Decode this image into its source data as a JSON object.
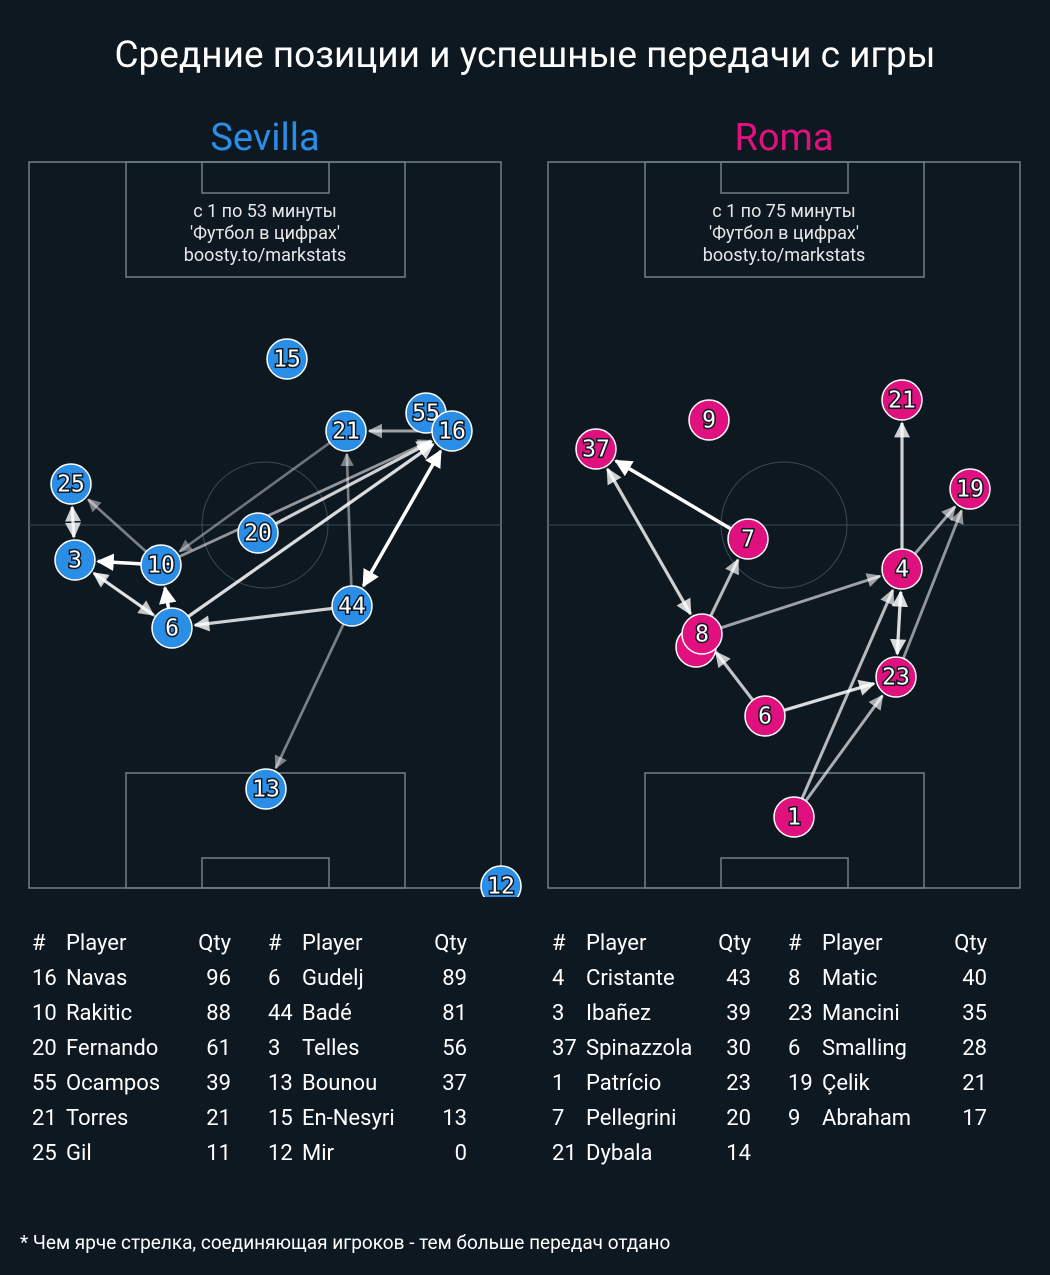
{
  "title": "Средние позиции и успешные передачи с игры",
  "note": "* Чем ярче стрелка, соединяющая игроков - тем больше передач отдано",
  "headers": [
    "#",
    "Player",
    "Qty"
  ],
  "teams": [
    {
      "name": "Sevilla",
      "color": "#2a8de6",
      "caption": [
        "с 1 по 53 минуты",
        "'Футбол в цифрах'",
        "boosty.to/markstats"
      ],
      "nodes": [
        15,
        21,
        55,
        16,
        25,
        20,
        3,
        10,
        6,
        44,
        13,
        12
      ],
      "tables": [
        [
          [
            16,
            "Navas",
            96
          ],
          [
            10,
            "Rakitic",
            88
          ],
          [
            20,
            "Fernando",
            61
          ],
          [
            55,
            "Ocampos",
            39
          ],
          [
            21,
            "Torres",
            21
          ],
          [
            25,
            "Gil",
            11
          ]
        ],
        [
          [
            6,
            "Gudelj",
            89
          ],
          [
            44,
            "Badé",
            81
          ],
          [
            3,
            "Telles",
            56
          ],
          [
            13,
            "Bounou",
            37
          ],
          [
            15,
            "En-Nesyri",
            13
          ],
          [
            12,
            "Mir",
            0
          ]
        ]
      ]
    },
    {
      "name": "Roma",
      "color": "#e0117f",
      "caption": [
        "с 1 по 75 минуты",
        "'Футбол в цифрах'",
        "boosty.to/markstats"
      ],
      "nodes": [
        9,
        21,
        37,
        19,
        7,
        4,
        8,
        23,
        6,
        1
      ],
      "tables": [
        [
          [
            4,
            "Cristante",
            43
          ],
          [
            3,
            "Ibañez",
            39
          ],
          [
            37,
            "Spinazzola",
            30
          ],
          [
            1,
            "Patrício",
            23
          ],
          [
            7,
            "Pellegrini",
            20
          ],
          [
            21,
            "Dybala",
            14
          ]
        ],
        [
          [
            8,
            "Matic",
            40
          ],
          [
            23,
            "Mancini",
            35
          ],
          [
            6,
            "Smalling",
            28
          ],
          [
            19,
            "Çelik",
            21
          ],
          [
            9,
            "Abraham",
            17
          ]
        ]
      ]
    }
  ]
}
